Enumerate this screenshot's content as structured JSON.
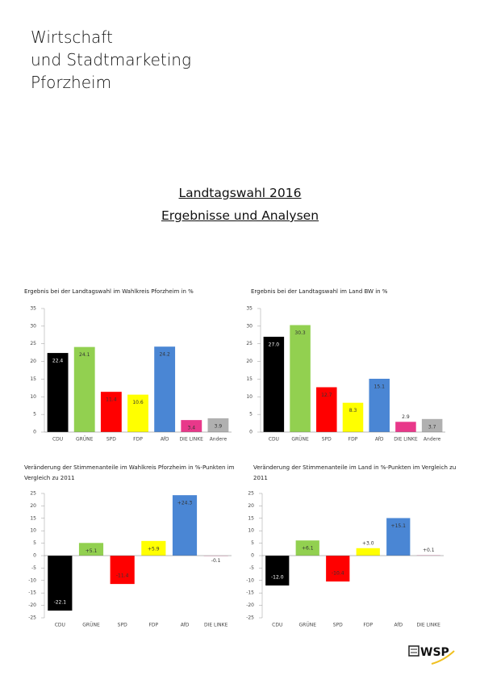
{
  "header": {
    "lines": [
      "Wirtschaft",
      "und Stadtmarketing",
      "Pforzheim"
    ]
  },
  "document_title": [
    "Landtagswahl 2016",
    "Ergebnisse und Analysen"
  ],
  "logo": "WSP",
  "chart_data": [
    {
      "type": "bar",
      "title": "Ergebnis bei der Landtagswahl im Wahlkreis Pforzheim in %",
      "categories": [
        "CDU",
        "GRÜNE",
        "SPD",
        "FDP",
        "AfD",
        "DIE LINKE",
        "Andere"
      ],
      "values": [
        22.4,
        24.1,
        11.4,
        10.6,
        24.2,
        3.4,
        3.9
      ],
      "value_labels": [
        "22.4",
        "24.1",
        "11.4",
        "10.6",
        "24.2",
        "3.4",
        "3.9"
      ],
      "colors": [
        "#000000",
        "#92d050",
        "#ff0000",
        "#ffff00",
        "#4a86d4",
        "#e8388a",
        "#b0b0b0"
      ],
      "ylim": [
        0,
        35
      ],
      "yticks": [
        0,
        5,
        10,
        15,
        20,
        25,
        30,
        35
      ],
      "grid": false
    },
    {
      "type": "bar",
      "title": "Ergebnis bei der Landtagswahl im Land BW in %",
      "categories": [
        "CDU",
        "GRÜNE",
        "SPD",
        "FDP",
        "AfD",
        "DIE LINKE",
        "Andere"
      ],
      "values": [
        27.0,
        30.3,
        12.7,
        8.3,
        15.1,
        2.9,
        3.7
      ],
      "value_labels": [
        "27.0",
        "30.3",
        "12.7",
        "8.3",
        "15.1",
        "2.9",
        "3.7"
      ],
      "colors": [
        "#000000",
        "#92d050",
        "#ff0000",
        "#ffff00",
        "#4a86d4",
        "#e8388a",
        "#b0b0b0"
      ],
      "ylim": [
        0,
        35
      ],
      "yticks": [
        0,
        5,
        10,
        15,
        20,
        25,
        30,
        35
      ],
      "grid": false
    },
    {
      "type": "bar",
      "title": "Veränderung der Stimmenanteile im Wahlkreis Pforzheim in %-Punkten im Vergleich zu 2011",
      "categories": [
        "CDU",
        "GRÜNE",
        "SPD",
        "FDP",
        "AfD",
        "DIE LINKE"
      ],
      "values": [
        -22.1,
        5.1,
        -11.4,
        5.9,
        24.3,
        -0.1
      ],
      "value_labels": [
        "-22.1",
        "+5.1",
        "-11.4",
        "+5.9",
        "+24.3",
        "-0.1"
      ],
      "colors": [
        "#000000",
        "#92d050",
        "#ff0000",
        "#ffff00",
        "#4a86d4",
        "#e8388a"
      ],
      "ylim": [
        -25,
        25
      ],
      "yticks": [
        -25,
        -20,
        -15,
        -10,
        -5,
        0,
        5,
        10,
        15,
        20,
        25
      ],
      "grid": false
    },
    {
      "type": "bar",
      "title": "Veränderung der Stimmenanteile im Land in %-Punkten im Vergleich zu 2011",
      "categories": [
        "CDU",
        "GRÜNE",
        "SPD",
        "FDP",
        "AfD",
        "DIE LINKE"
      ],
      "values": [
        -12.0,
        6.1,
        -10.4,
        3.0,
        15.1,
        0.1
      ],
      "value_labels": [
        "-12.0",
        "+6.1",
        "-10.4",
        "+3.0",
        "+15.1",
        "+0.1"
      ],
      "colors": [
        "#000000",
        "#92d050",
        "#ff0000",
        "#ffff00",
        "#4a86d4",
        "#e8388a"
      ],
      "ylim": [
        -25,
        25
      ],
      "yticks": [
        -25,
        -20,
        -15,
        -10,
        -5,
        0,
        5,
        10,
        15,
        20,
        25
      ],
      "grid": false
    }
  ]
}
